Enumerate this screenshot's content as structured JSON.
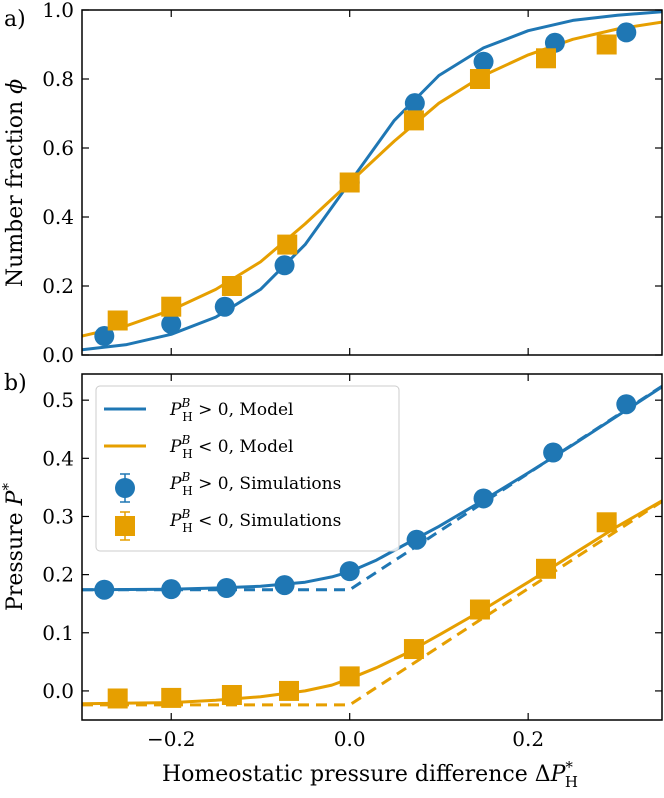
{
  "colors": {
    "blue": "#1f77b4",
    "orange": "#e69f00",
    "axis": "#000000"
  },
  "chart_data": [
    {
      "type": "line",
      "panel_label": "a)",
      "ylabel": "Number fraction ϕ",
      "xlim": [
        -0.3,
        0.35
      ],
      "ylim": [
        0.0,
        1.0
      ],
      "xticks": [
        -0.2,
        0.0,
        0.2
      ],
      "xtick_labels": [
        "",
        "",
        ""
      ],
      "yticks": [
        0.0,
        0.2,
        0.4,
        0.6,
        0.8,
        1.0
      ],
      "ytick_labels": [
        "0.0",
        "0.2",
        "0.4",
        "0.6",
        "0.8",
        "1.0"
      ],
      "series": [
        {
          "name": "P_H^B > 0, Model",
          "kind": "line",
          "color_key": "blue",
          "x": [
            -0.3,
            -0.25,
            -0.2,
            -0.15,
            -0.1,
            -0.05,
            0.0,
            0.05,
            0.1,
            0.15,
            0.2,
            0.25,
            0.3,
            0.35
          ],
          "y": [
            0.015,
            0.03,
            0.06,
            0.11,
            0.19,
            0.32,
            0.5,
            0.68,
            0.81,
            0.89,
            0.94,
            0.97,
            0.985,
            0.995
          ]
        },
        {
          "name": "P_H^B < 0, Model",
          "kind": "line",
          "color_key": "orange",
          "x": [
            -0.3,
            -0.25,
            -0.2,
            -0.15,
            -0.1,
            -0.05,
            0.0,
            0.05,
            0.1,
            0.15,
            0.2,
            0.25,
            0.3,
            0.35
          ],
          "y": [
            0.055,
            0.085,
            0.13,
            0.19,
            0.27,
            0.38,
            0.5,
            0.62,
            0.73,
            0.81,
            0.87,
            0.915,
            0.945,
            0.965
          ]
        },
        {
          "name": "P_H^B > 0, Simulations",
          "kind": "scatter",
          "marker": "circle",
          "color_key": "blue",
          "x": [
            -0.275,
            -0.2,
            -0.14,
            -0.073,
            0.0,
            0.073,
            0.15,
            0.23,
            0.31
          ],
          "y": [
            0.055,
            0.09,
            0.14,
            0.26,
            0.5,
            0.73,
            0.85,
            0.905,
            0.935
          ]
        },
        {
          "name": "P_H^B < 0, Simulations",
          "kind": "scatter",
          "marker": "square",
          "color_key": "orange",
          "x": [
            -0.26,
            -0.2,
            -0.132,
            -0.07,
            0.0,
            0.072,
            0.146,
            0.22,
            0.288
          ],
          "y": [
            0.1,
            0.14,
            0.2,
            0.32,
            0.5,
            0.68,
            0.8,
            0.86,
            0.9
          ]
        }
      ]
    },
    {
      "type": "line",
      "panel_label": "b)",
      "xlabel": "Homeostatic pressure difference ΔP*H",
      "ylabel": "Pressure P*",
      "xlim": [
        -0.3,
        0.35
      ],
      "ylim": [
        -0.05,
        0.545
      ],
      "xticks": [
        -0.2,
        0.0,
        0.2
      ],
      "xtick_labels": [
        "−0.2",
        "0.0",
        "0.2"
      ],
      "yticks": [
        0.0,
        0.1,
        0.2,
        0.3,
        0.4,
        0.5
      ],
      "ytick_labels": [
        "0.0",
        "0.1",
        "0.2",
        "0.3",
        "0.4",
        "0.5"
      ],
      "legend": {
        "position": "top-left",
        "entries": [
          {
            "kind": "line",
            "color_key": "blue",
            "text": "P_H^B > 0, Model"
          },
          {
            "kind": "line",
            "color_key": "orange",
            "text": "P_H^B < 0, Model"
          },
          {
            "kind": "circle",
            "color_key": "blue",
            "text": "P_H^B > 0, Simulations"
          },
          {
            "kind": "square",
            "color_key": "orange",
            "text": "P_H^B < 0, Simulations"
          }
        ]
      },
      "series": [
        {
          "name": "P_H^B > 0, Model",
          "kind": "line",
          "color_key": "blue",
          "x": [
            -0.3,
            -0.2,
            -0.15,
            -0.1,
            -0.05,
            -0.02,
            0.0,
            0.03,
            0.06,
            0.1,
            0.15,
            0.2,
            0.25,
            0.3,
            0.35
          ],
          "y": [
            0.174,
            0.175,
            0.177,
            0.18,
            0.187,
            0.196,
            0.205,
            0.225,
            0.25,
            0.283,
            0.328,
            0.375,
            0.423,
            0.473,
            0.523
          ]
        },
        {
          "name": "P_H^B > 0, Model (asymptote)",
          "kind": "dashed",
          "color_key": "blue",
          "x": [
            -0.3,
            0.0,
            0.35
          ],
          "y": [
            0.174,
            0.174,
            0.524
          ]
        },
        {
          "name": "P_H^B < 0, Model",
          "kind": "line",
          "color_key": "orange",
          "x": [
            -0.3,
            -0.2,
            -0.15,
            -0.1,
            -0.05,
            -0.02,
            0.0,
            0.03,
            0.06,
            0.1,
            0.15,
            0.2,
            0.25,
            0.3,
            0.35
          ],
          "y": [
            -0.022,
            -0.02,
            -0.016,
            -0.01,
            0.0,
            0.01,
            0.021,
            0.04,
            0.062,
            0.096,
            0.14,
            0.187,
            0.235,
            0.283,
            0.327
          ]
        },
        {
          "name": "P_H^B < 0, Model (asymptote)",
          "kind": "dashed",
          "color_key": "orange",
          "x": [
            -0.3,
            0.0,
            0.35
          ],
          "y": [
            -0.024,
            -0.024,
            0.326
          ]
        },
        {
          "name": "P_H^B > 0, Simulations",
          "kind": "scatter",
          "marker": "circle",
          "color_key": "blue",
          "x": [
            -0.275,
            -0.2,
            -0.138,
            -0.073,
            0.0,
            0.075,
            0.15,
            0.228,
            0.31
          ],
          "y": [
            0.174,
            0.175,
            0.177,
            0.182,
            0.206,
            0.26,
            0.331,
            0.41,
            0.493
          ]
        },
        {
          "name": "P_H^B < 0, Simulations",
          "kind": "scatter",
          "marker": "square",
          "color_key": "orange",
          "x": [
            -0.26,
            -0.2,
            -0.132,
            -0.068,
            0.0,
            0.072,
            0.146,
            0.22,
            0.288
          ],
          "y": [
            -0.013,
            -0.012,
            -0.007,
            0.0,
            0.025,
            0.072,
            0.14,
            0.21,
            0.29
          ]
        }
      ]
    }
  ]
}
